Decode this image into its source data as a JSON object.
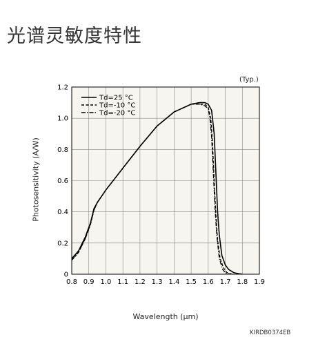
{
  "page": {
    "title": "光谱灵敏度特性",
    "figure_code": "KIRDB0374EB"
  },
  "chart_data": {
    "type": "line",
    "note": "(Typ.)",
    "xlabel": "Wavelength (µm)",
    "ylabel": "Photosensitivity (A/W)",
    "xlim": [
      0.8,
      1.9
    ],
    "ylim": [
      0,
      1.2
    ],
    "xticks": [
      "0.8",
      "0.9",
      "1.0",
      "1.1",
      "1.2",
      "1.3",
      "1.4",
      "1.5",
      "1.6",
      "1.7",
      "1.8",
      "1.9"
    ],
    "yticks": [
      "0",
      "0.2",
      "0.4",
      "0.6",
      "0.8",
      "1.0",
      "1.2"
    ],
    "grid": true,
    "legend_position": "top-left",
    "series": [
      {
        "name": "Td=25 °C",
        "dash": "solid",
        "x": [
          0.8,
          0.84,
          0.88,
          0.91,
          0.93,
          0.95,
          1.0,
          1.1,
          1.2,
          1.3,
          1.4,
          1.5,
          1.55,
          1.58,
          1.6,
          1.62,
          1.635,
          1.645,
          1.655,
          1.665,
          1.68,
          1.7,
          1.72,
          1.75,
          1.78,
          1.8
        ],
        "y": [
          0.1,
          0.15,
          0.24,
          0.33,
          0.42,
          0.46,
          0.54,
          0.68,
          0.82,
          0.95,
          1.04,
          1.09,
          1.1,
          1.1,
          1.09,
          1.05,
          0.9,
          0.65,
          0.4,
          0.25,
          0.12,
          0.06,
          0.03,
          0.01,
          0.003,
          0.0
        ]
      },
      {
        "name": "Td=-10 °C",
        "dash": "dashed",
        "x": [
          0.8,
          0.84,
          0.88,
          0.91,
          0.93,
          0.95,
          1.0,
          1.1,
          1.2,
          1.3,
          1.4,
          1.5,
          1.55,
          1.58,
          1.6,
          1.615,
          1.625,
          1.635,
          1.645,
          1.655,
          1.67,
          1.69,
          1.71,
          1.74
        ],
        "y": [
          0.09,
          0.14,
          0.23,
          0.32,
          0.41,
          0.46,
          0.54,
          0.68,
          0.82,
          0.95,
          1.04,
          1.09,
          1.09,
          1.09,
          1.07,
          1.0,
          0.85,
          0.6,
          0.38,
          0.22,
          0.1,
          0.04,
          0.01,
          0.0
        ]
      },
      {
        "name": "Td=-20 °C",
        "dash": "dash-dot",
        "x": [
          0.8,
          0.84,
          0.88,
          0.91,
          0.93,
          0.95,
          1.0,
          1.1,
          1.2,
          1.3,
          1.4,
          1.5,
          1.55,
          1.58,
          1.6,
          1.61,
          1.62,
          1.63,
          1.64,
          1.65,
          1.665,
          1.685,
          1.7,
          1.73
        ],
        "y": [
          0.09,
          0.14,
          0.23,
          0.32,
          0.41,
          0.46,
          0.54,
          0.68,
          0.82,
          0.95,
          1.04,
          1.09,
          1.09,
          1.08,
          1.06,
          1.0,
          0.88,
          0.65,
          0.42,
          0.25,
          0.1,
          0.03,
          0.01,
          0.0
        ]
      }
    ]
  }
}
